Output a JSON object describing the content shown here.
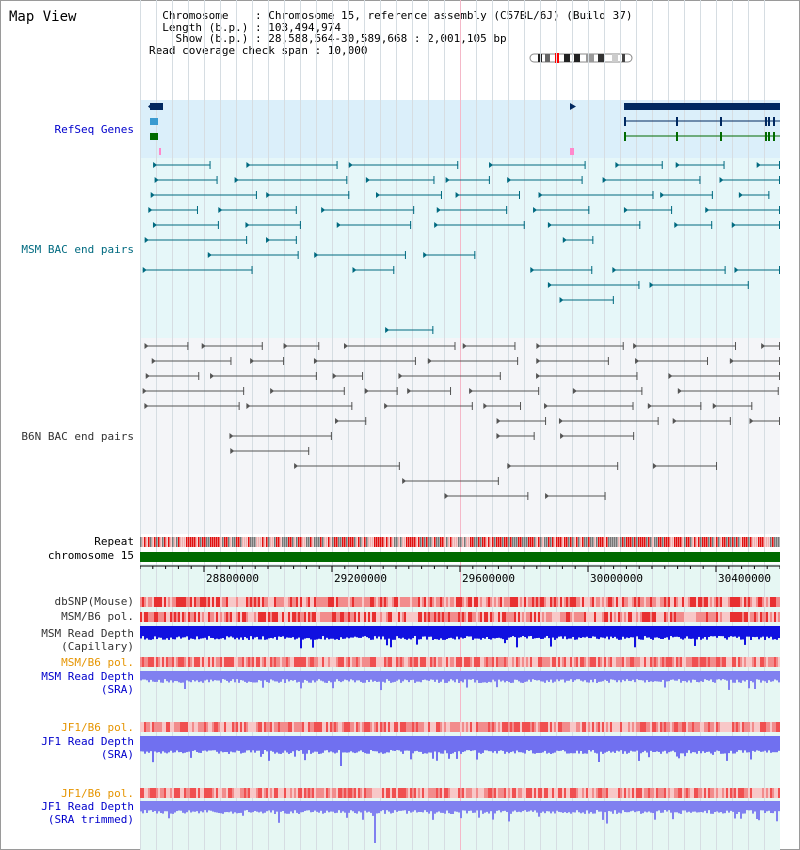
{
  "view_title": "Map View",
  "info_lines": [
    "  Chromosome    : Chromosome 15, reference assembly (C57BL/6J) (Build 37)",
    "  Length (b.p.) : 103,494,974",
    "    Show (b.p.) : 28,588,564-30,589,668 : 2,001,105 bp",
    "Read coverage check span : 10,000"
  ],
  "tracks": {
    "refseq": "RefSeq Genes",
    "msm_bac": "MSM BAC end pairs",
    "b6n_bac": "B6N BAC end pairs",
    "repeat": "Repeat",
    "chromosome": "chromosome 15",
    "dbsnp": "dbSNP(Mouse)",
    "msm_b6_pol_1": "MSM/B6 pol.",
    "msm_read_depth_cap_1": "MSM Read Depth",
    "msm_read_depth_cap_2": "(Capillary)",
    "msm_b6_pol_2": "MSM/B6 pol.",
    "msm_read_depth_sra_1": "MSM Read Depth",
    "msm_read_depth_sra_2": "(SRA)",
    "jf1_b6_pol_1": "JF1/B6 pol.",
    "jf1_read_depth_sra_1": "JF1 Read Depth",
    "jf1_read_depth_sra_2": "(SRA)",
    "jf1_b6_pol_2": "JF1/B6 pol.",
    "jf1_read_depth_trim_1": "JF1 Read Depth",
    "jf1_read_depth_trim_2": "(SRA trimmed)"
  },
  "axis": {
    "ticks": [
      "28800000",
      "29200000",
      "29600000",
      "30000000",
      "30400000"
    ]
  },
  "colors": {
    "refseq_bg": "#dbeffa",
    "msm_bg": "#e6f7f9",
    "b6n_bg": "#f4f5f8",
    "axis_bg": "#e6f7f3",
    "msm_feature": "#006a80",
    "b6n_feature": "#555555",
    "repeat_red": "#e01010",
    "chrom_green": "#006a00",
    "snp_red": "#f05050",
    "depth_dark": "#1010e0",
    "depth_light": "#8080f0",
    "gene_navy": "#002860"
  }
}
